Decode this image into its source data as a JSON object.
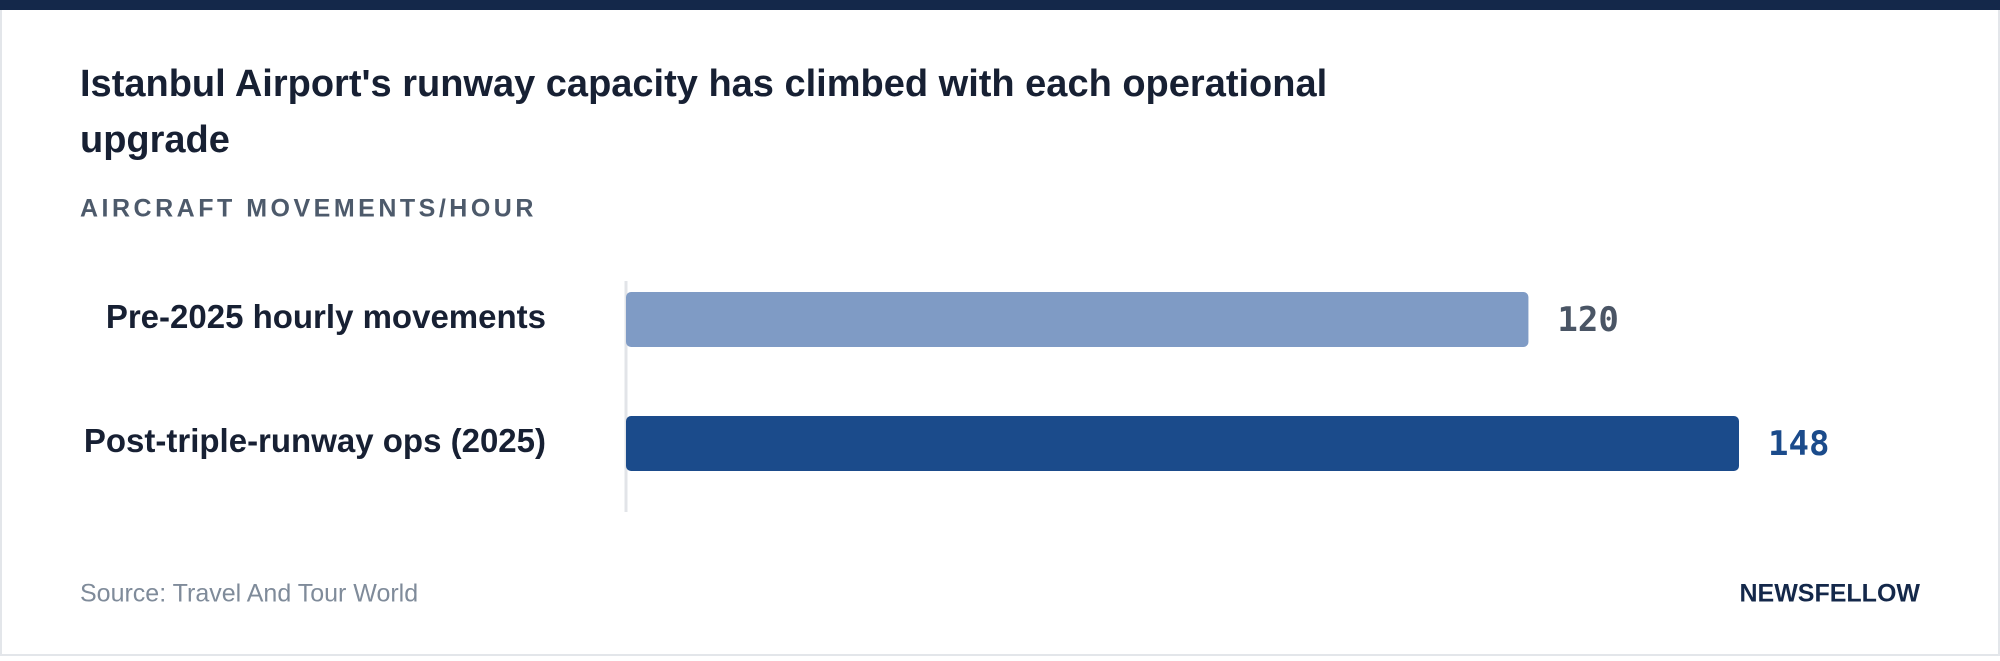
{
  "chart_data": {
    "type": "bar",
    "orientation": "horizontal",
    "title": "Istanbul Airport's runway capacity has climbed with each operational upgrade",
    "subtitle": "AIRCRAFT MOVEMENTS/HOUR",
    "categories": [
      "Pre-2025 hourly movements",
      "Post-triple-runway ops (2025)"
    ],
    "values": [
      120,
      148
    ],
    "colors": [
      "#7f9bc5",
      "#1b4b8b"
    ],
    "value_label_colors": [
      "#4a5565",
      "#1b4b8b"
    ],
    "source": "Source: Travel And Tour World",
    "brand": "NEWSFELLOW"
  }
}
